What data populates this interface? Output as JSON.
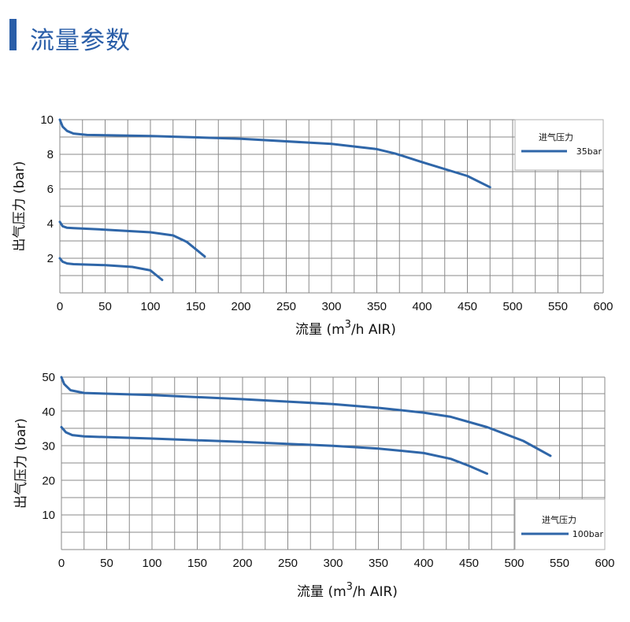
{
  "title": "流量参数",
  "colors": {
    "accent": "#2a5ea8",
    "curve": "#2f66a8",
    "grid": "#8a8a8a"
  },
  "chart_data": [
    {
      "type": "line",
      "xlabel_prefix": "流量 (m",
      "xlabel_sup": "3",
      "xlabel_suffix": "/h AIR)",
      "ylabel": "出气压力 (bar)",
      "xlim": [
        0,
        600
      ],
      "ylim": [
        0,
        10
      ],
      "x_ticks": [
        "0",
        "50",
        "100",
        "150",
        "200",
        "250",
        "300",
        "350",
        "400",
        "450",
        "500",
        "550",
        "600"
      ],
      "y_ticks": [
        {
          "value": 2,
          "label": "2"
        },
        {
          "value": 4,
          "label": "4"
        },
        {
          "value": 6,
          "label": "6"
        },
        {
          "value": 8,
          "label": "8"
        },
        {
          "value": 10,
          "label": "10"
        }
      ],
      "grid": true,
      "legend": {
        "title": "进气压力",
        "entry": "35bar",
        "placement": "top-right"
      },
      "series": [
        {
          "points": [
            [
              0,
              10
            ],
            [
              3,
              9.6
            ],
            [
              8,
              9.35
            ],
            [
              15,
              9.2
            ],
            [
              30,
              9.12
            ],
            [
              100,
              9.06
            ],
            [
              200,
              8.9
            ],
            [
              300,
              8.6
            ],
            [
              350,
              8.3
            ],
            [
              370,
              8.05
            ],
            [
              400,
              7.55
            ],
            [
              450,
              6.75
            ],
            [
              475,
              6.1
            ]
          ]
        },
        {
          "points": [
            [
              0,
              4.1
            ],
            [
              3,
              3.85
            ],
            [
              8,
              3.76
            ],
            [
              15,
              3.74
            ],
            [
              50,
              3.65
            ],
            [
              100,
              3.5
            ],
            [
              125,
              3.32
            ],
            [
              140,
              2.95
            ],
            [
              160,
              2.1
            ]
          ]
        },
        {
          "points": [
            [
              0,
              2.0
            ],
            [
              3,
              1.8
            ],
            [
              8,
              1.7
            ],
            [
              15,
              1.66
            ],
            [
              50,
              1.6
            ],
            [
              80,
              1.5
            ],
            [
              100,
              1.3
            ],
            [
              107,
              1.0
            ],
            [
              113,
              0.75
            ]
          ]
        }
      ]
    },
    {
      "type": "line",
      "xlabel_prefix": "流量 (m",
      "xlabel_sup": "3",
      "xlabel_suffix": "/h AIR)",
      "ylabel": "出气压力 (bar)",
      "xlim": [
        0,
        600
      ],
      "ylim": [
        0,
        50
      ],
      "x_ticks": [
        "0",
        "50",
        "100",
        "150",
        "200",
        "250",
        "300",
        "350",
        "400",
        "450",
        "500",
        "550",
        "600"
      ],
      "y_ticks": [
        {
          "value": 10,
          "label": "10"
        },
        {
          "value": 20,
          "label": "20"
        },
        {
          "value": 30,
          "label": "30"
        },
        {
          "value": 40,
          "label": "40"
        },
        {
          "value": 50,
          "label": "50"
        }
      ],
      "grid": true,
      "legend": {
        "title": "进气压力",
        "entry": "100bar",
        "placement": "bottom-right"
      },
      "series": [
        {
          "points": [
            [
              0,
              50
            ],
            [
              3,
              48
            ],
            [
              10,
              46.2
            ],
            [
              25,
              45.4
            ],
            [
              100,
              44.8
            ],
            [
              200,
              43.6
            ],
            [
              300,
              42.2
            ],
            [
              350,
              41.1
            ],
            [
              400,
              39.7
            ],
            [
              430,
              38.5
            ],
            [
              470,
              35.5
            ],
            [
              510,
              31.5
            ],
            [
              540,
              27.2
            ]
          ]
        },
        {
          "points": [
            [
              0,
              35.5
            ],
            [
              5,
              34
            ],
            [
              12,
              33.2
            ],
            [
              25,
              32.8
            ],
            [
              100,
              32.2
            ],
            [
              200,
              31.2
            ],
            [
              300,
              30.1
            ],
            [
              350,
              29.3
            ],
            [
              400,
              28.0
            ],
            [
              430,
              26.3
            ],
            [
              450,
              24.3
            ],
            [
              470,
              22.0
            ]
          ]
        }
      ]
    }
  ]
}
